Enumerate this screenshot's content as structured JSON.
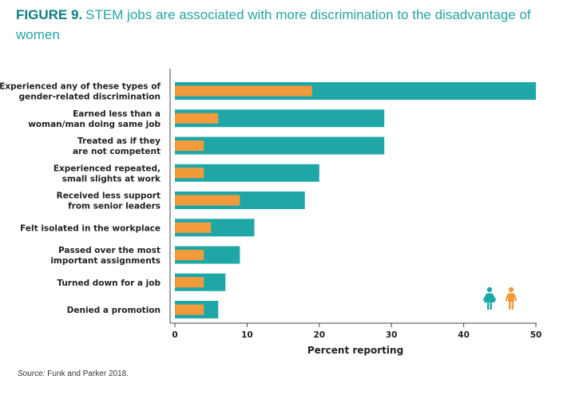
{
  "figure": {
    "label": "FIGURE 9.",
    "title": "STEM jobs are associated with more discrimination to the disadvantage of women"
  },
  "source": {
    "label": "Source:",
    "text": "Funk and Parker 2018."
  },
  "legend": {
    "women_icon": "woman-icon",
    "men_icon": "man-icon",
    "placement": "bottom-right"
  },
  "colors": {
    "women": "#1fa7a8",
    "men": "#f39a3b",
    "title_accent": "#0e7f84",
    "title": "#27a3a5"
  },
  "chart_data": {
    "type": "bar",
    "orientation": "horizontal",
    "xlabel": "Percent reporting",
    "ylabel": "",
    "xlim": [
      0,
      50
    ],
    "xticks": [
      "0",
      "10",
      "20",
      "30",
      "40",
      "50"
    ],
    "grid": false,
    "categories": [
      [
        "Experienced any of these types of",
        "gender-related discrimination"
      ],
      [
        "Earned less than a",
        "woman/man doing same job"
      ],
      [
        "Treated as if they",
        "are not competent"
      ],
      [
        "Experienced repeated,",
        "small slights at work"
      ],
      [
        "Received less support",
        "from senior leaders"
      ],
      [
        "Felt isolated in the workplace"
      ],
      [
        "Passed over the most",
        "important assignments"
      ],
      [
        "Turned down for a job"
      ],
      [
        "Denied a promotion"
      ]
    ],
    "series": [
      {
        "key": "women",
        "values": [
          50,
          29,
          29,
          20,
          18,
          11,
          9,
          7,
          6
        ]
      },
      {
        "key": "men",
        "values": [
          19,
          6,
          4,
          4,
          9,
          5,
          4,
          4,
          4
        ]
      }
    ]
  }
}
